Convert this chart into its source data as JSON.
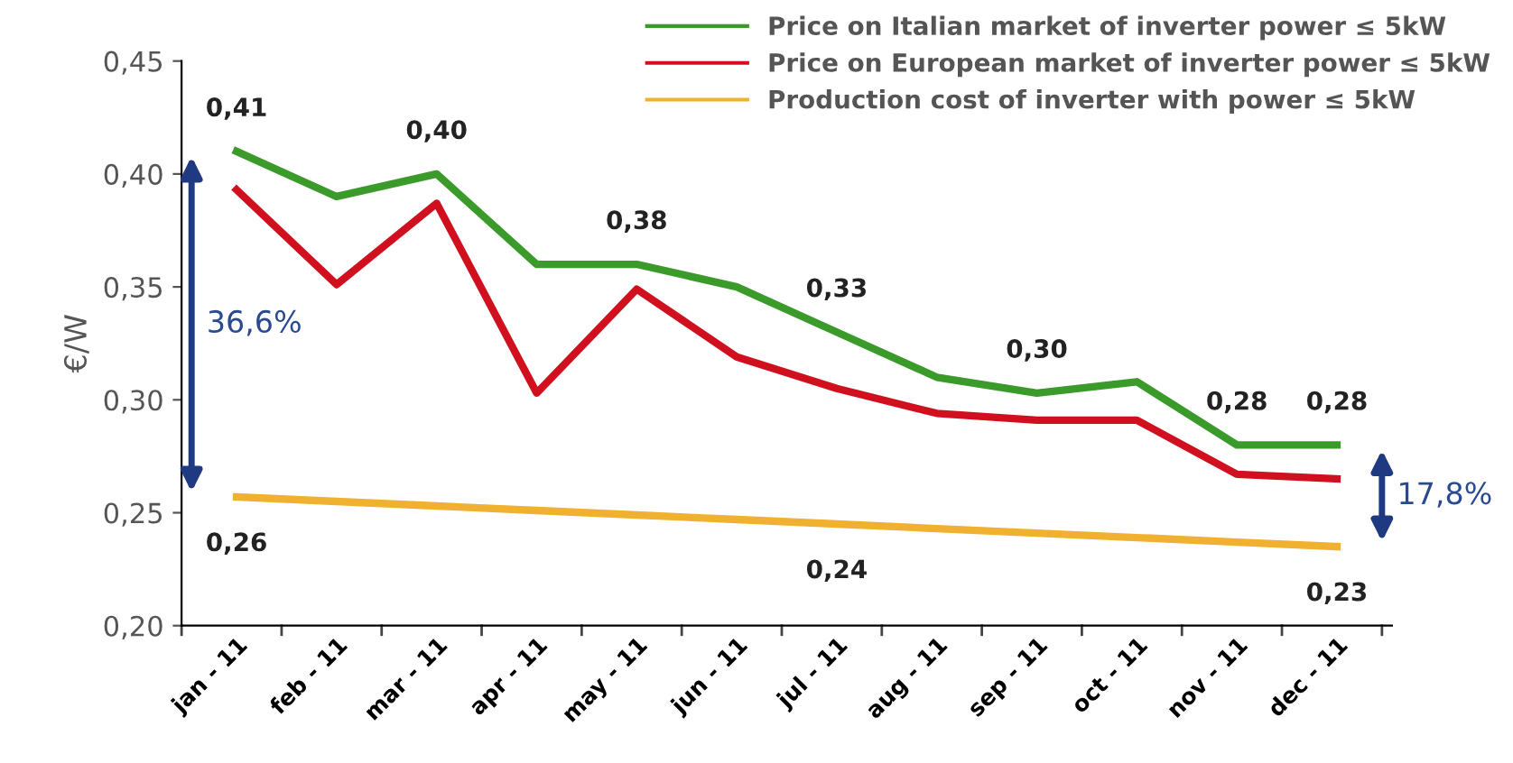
{
  "chart_data": {
    "type": "line",
    "ylabel": "€/W",
    "categories": [
      "jan - 11",
      "feb - 11",
      "mar - 11",
      "apr - 11",
      "may - 11",
      "jun - 11",
      "jul - 11",
      "aug - 11",
      "sep - 11",
      "oct - 11",
      "nov - 11",
      "dec - 11"
    ],
    "series": [
      {
        "name": "Price on Italian market of inverter power ≤ 5kW",
        "color": "#3a9a2a",
        "values": [
          0.41,
          0.39,
          0.4,
          0.36,
          0.36,
          0.35,
          0.33,
          0.31,
          0.303,
          0.308,
          0.28,
          0.28
        ],
        "value_labels": [
          "0,41",
          null,
          "0,40",
          null,
          null,
          null,
          "0,33",
          null,
          "0,30",
          null,
          "0,28",
          "0,28"
        ]
      },
      {
        "name": "Price on European market of inverter power ≤ 5kW",
        "color": "#d0101e",
        "values": [
          0.393,
          0.351,
          0.387,
          0.303,
          0.349,
          0.319,
          0.305,
          0.294,
          0.291,
          0.291,
          0.267,
          0.265
        ]
      },
      {
        "name": "Production cost of inverter with power ≤ 5kW",
        "color": "#f0b030",
        "values": [
          0.257,
          0.255,
          0.253,
          0.251,
          0.249,
          0.247,
          0.245,
          0.243,
          0.241,
          0.239,
          0.237,
          0.235
        ],
        "value_labels": [
          "0,26",
          null,
          null,
          null,
          null,
          null,
          "0,24",
          null,
          null,
          null,
          null,
          "0,23"
        ]
      }
    ],
    "ylim": [
      0.2,
      0.45
    ],
    "yticks": [
      {
        "value": 0.2,
        "label": "0,20"
      },
      {
        "value": 0.25,
        "label": "0,25"
      },
      {
        "value": 0.3,
        "label": "0,30"
      },
      {
        "value": 0.35,
        "label": "0,35"
      },
      {
        "value": 0.4,
        "label": "0,40"
      },
      {
        "value": 0.45,
        "label": "0,45"
      }
    ],
    "annotations": [
      "36,6%",
      "17,8%",
      "0,38"
    ],
    "grid": false,
    "legend": "top right",
    "marker": "none",
    "line_style": "solid"
  }
}
